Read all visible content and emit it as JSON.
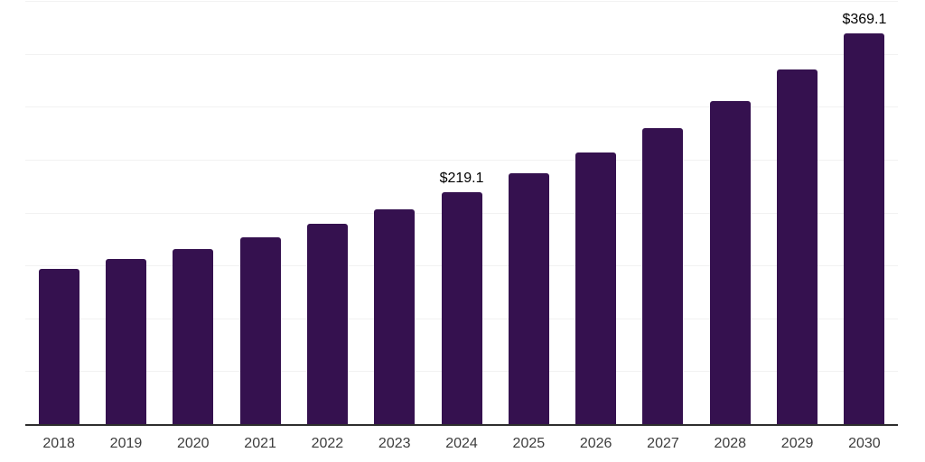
{
  "chart_data": {
    "type": "bar",
    "title": "",
    "xlabel": "",
    "ylabel": "",
    "categories": [
      "2018",
      "2019",
      "2020",
      "2021",
      "2022",
      "2023",
      "2024",
      "2025",
      "2026",
      "2027",
      "2028",
      "2029",
      "2030"
    ],
    "values": [
      146.4,
      156.1,
      165.5,
      176.5,
      189.1,
      203.2,
      219.1,
      236.8,
      256.5,
      280.0,
      305.6,
      335.4,
      369.1
    ],
    "data_labels": [
      "",
      "",
      "",
      "",
      "",
      "",
      "$219.1",
      "",
      "",
      "",
      "",
      "",
      "$369.1"
    ],
    "ylim": [
      0,
      400
    ],
    "grid_step": 50,
    "grid": true,
    "legend": false,
    "colors": {
      "bar": "#35114F",
      "gridline": "#f2f2f2",
      "axis_line": "#2e2e2e",
      "tick_label": "#3d3d3d",
      "value_label": "#000000",
      "background": "#ffffff"
    }
  }
}
